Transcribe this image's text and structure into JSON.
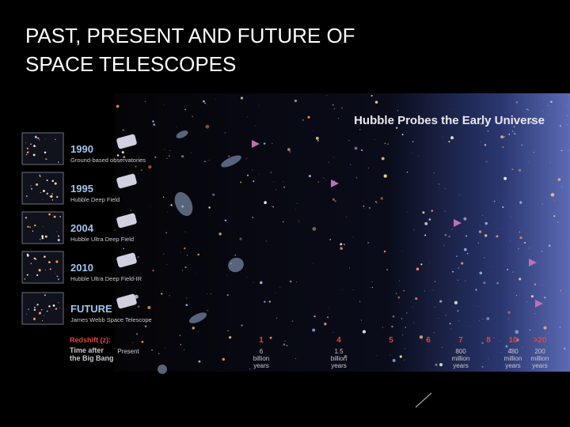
{
  "slide": {
    "title_lines": [
      "PAST, PRESENT AND FUTURE OF",
      "SPACE TELESCOPES"
    ]
  },
  "figure": {
    "title": "Hubble Probes the Early Universe",
    "rows": [
      {
        "year": "1990",
        "label": "Ground-based observatories"
      },
      {
        "year": "1995",
        "label": "Hubble Deep Field"
      },
      {
        "year": "2004",
        "label": "Hubble Ultra Deep Field"
      },
      {
        "year": "2010",
        "label": "Hubble Ultra Deep Field-IR"
      },
      {
        "year": "FUTURE",
        "label": "James Webb Space Telescope"
      }
    ],
    "redshift_label": "Redshift (z):",
    "redshifts": [
      "1",
      "4",
      "5",
      "6",
      "7",
      "8",
      "10",
      ">20"
    ],
    "time_label": [
      "Time after",
      "the Big Bang"
    ],
    "times": [
      [
        "Present"
      ],
      [
        "6",
        "billion",
        "years"
      ],
      [
        "1.5",
        "billion",
        "years"
      ],
      [
        "800",
        "million",
        "years"
      ],
      [
        "480",
        "million",
        "years"
      ],
      [
        "200",
        "million",
        "years"
      ]
    ]
  }
}
